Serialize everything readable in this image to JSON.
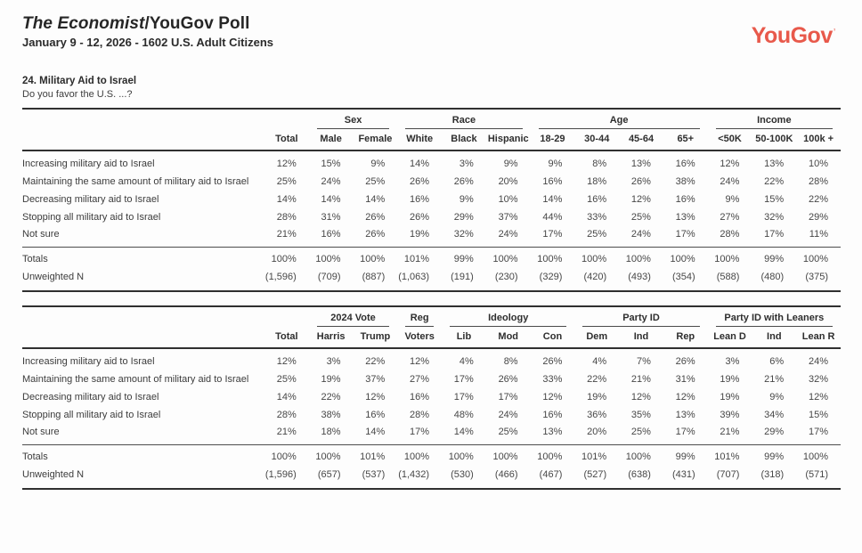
{
  "page": {
    "title_italic": "The Economist",
    "title_rest": "/YouGov Poll",
    "subtitle": "January 9 - 12, 2026 - 1602 U.S. Adult Citizens",
    "logo": "YouGov",
    "logo_mark": "’",
    "logo_color": "#e8594b",
    "question_title": "24. Military Aid to Israel",
    "question_text": "Do you favor the U.S. ...?"
  },
  "tables": [
    {
      "name": "demographics",
      "groups": [
        {
          "label": "",
          "cols": [
            "Total"
          ]
        },
        {
          "label": "Sex",
          "cols": [
            "Male",
            "Female"
          ]
        },
        {
          "label": "Race",
          "cols": [
            "White",
            "Black",
            "Hispanic"
          ]
        },
        {
          "label": "Age",
          "cols": [
            "18-29",
            "30-44",
            "45-64",
            "65+"
          ]
        },
        {
          "label": "Income",
          "cols": [
            "<50K",
            "50-100K",
            "100k +"
          ]
        }
      ],
      "rows": [
        {
          "label": "Increasing military aid to Israel",
          "values": [
            "12%",
            "15%",
            "9%",
            "14%",
            "3%",
            "9%",
            "9%",
            "8%",
            "13%",
            "16%",
            "12%",
            "13%",
            "10%"
          ]
        },
        {
          "label": "Maintaining the same amount of military aid to Israel",
          "values": [
            "25%",
            "24%",
            "25%",
            "26%",
            "26%",
            "20%",
            "16%",
            "18%",
            "26%",
            "38%",
            "24%",
            "22%",
            "28%"
          ]
        },
        {
          "label": "Decreasing military aid to Israel",
          "values": [
            "14%",
            "14%",
            "14%",
            "16%",
            "9%",
            "10%",
            "14%",
            "16%",
            "12%",
            "16%",
            "9%",
            "15%",
            "22%"
          ]
        },
        {
          "label": "Stopping all military aid to Israel",
          "values": [
            "28%",
            "31%",
            "26%",
            "26%",
            "29%",
            "37%",
            "44%",
            "33%",
            "25%",
            "13%",
            "27%",
            "32%",
            "29%"
          ]
        },
        {
          "label": "Not sure",
          "values": [
            "21%",
            "16%",
            "26%",
            "19%",
            "32%",
            "24%",
            "17%",
            "25%",
            "24%",
            "17%",
            "28%",
            "17%",
            "11%"
          ]
        }
      ],
      "totals": {
        "label": "Totals",
        "values": [
          "100%",
          "100%",
          "100%",
          "101%",
          "99%",
          "100%",
          "100%",
          "100%",
          "100%",
          "100%",
          "100%",
          "99%",
          "100%"
        ]
      },
      "unweighted": {
        "label": "Unweighted N",
        "values": [
          "(1,596)",
          "(709)",
          "(887)",
          "(1,063)",
          "(191)",
          "(230)",
          "(329)",
          "(420)",
          "(493)",
          "(354)",
          "(588)",
          "(480)",
          "(375)"
        ]
      }
    },
    {
      "name": "politics",
      "groups": [
        {
          "label": "",
          "cols": [
            "Total"
          ]
        },
        {
          "label": "2024 Vote",
          "cols": [
            "Harris",
            "Trump"
          ]
        },
        {
          "label": "Reg",
          "cols": [
            "Voters"
          ]
        },
        {
          "label": "Ideology",
          "cols": [
            "Lib",
            "Mod",
            "Con"
          ]
        },
        {
          "label": "Party ID",
          "cols": [
            "Dem",
            "Ind",
            "Rep"
          ]
        },
        {
          "label": "Party ID with Leaners",
          "cols": [
            "Lean D",
            "Ind",
            "Lean R"
          ]
        }
      ],
      "rows": [
        {
          "label": "Increasing military aid to Israel",
          "values": [
            "12%",
            "3%",
            "22%",
            "12%",
            "4%",
            "8%",
            "26%",
            "4%",
            "7%",
            "26%",
            "3%",
            "6%",
            "24%"
          ]
        },
        {
          "label": "Maintaining the same amount of military aid to Israel",
          "values": [
            "25%",
            "19%",
            "37%",
            "27%",
            "17%",
            "26%",
            "33%",
            "22%",
            "21%",
            "31%",
            "19%",
            "21%",
            "32%"
          ]
        },
        {
          "label": "Decreasing military aid to Israel",
          "values": [
            "14%",
            "22%",
            "12%",
            "16%",
            "17%",
            "17%",
            "12%",
            "19%",
            "12%",
            "12%",
            "19%",
            "9%",
            "12%"
          ]
        },
        {
          "label": "Stopping all military aid to Israel",
          "values": [
            "28%",
            "38%",
            "16%",
            "28%",
            "48%",
            "24%",
            "16%",
            "36%",
            "35%",
            "13%",
            "39%",
            "34%",
            "15%"
          ]
        },
        {
          "label": "Not sure",
          "values": [
            "21%",
            "18%",
            "14%",
            "17%",
            "14%",
            "25%",
            "13%",
            "20%",
            "25%",
            "17%",
            "21%",
            "29%",
            "17%"
          ]
        }
      ],
      "totals": {
        "label": "Totals",
        "values": [
          "100%",
          "100%",
          "101%",
          "100%",
          "100%",
          "100%",
          "100%",
          "101%",
          "100%",
          "99%",
          "101%",
          "99%",
          "100%"
        ]
      },
      "unweighted": {
        "label": "Unweighted N",
        "values": [
          "(1,596)",
          "(657)",
          "(537)",
          "(1,432)",
          "(530)",
          "(466)",
          "(467)",
          "(527)",
          "(638)",
          "(431)",
          "(707)",
          "(318)",
          "(571)"
        ]
      }
    }
  ]
}
